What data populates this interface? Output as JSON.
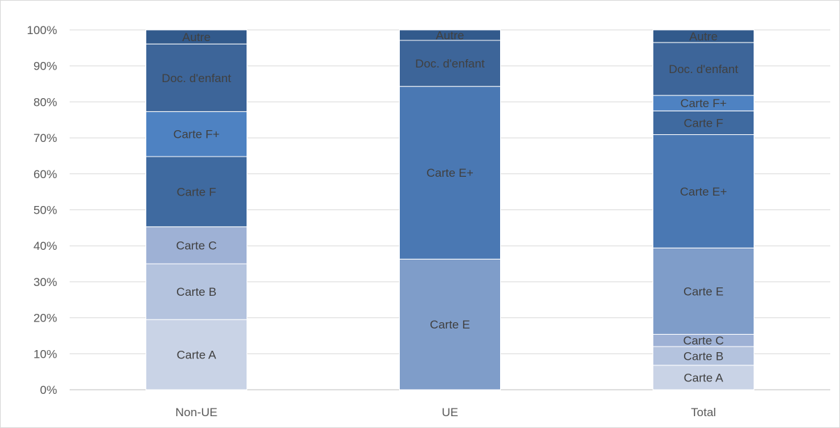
{
  "chart_data": {
    "type": "bar",
    "stacked": true,
    "percent": true,
    "categories": [
      "Non-UE",
      "UE",
      "Total"
    ],
    "ylim": [
      0,
      100
    ],
    "yticks": [
      "0%",
      "10%",
      "20%",
      "30%",
      "40%",
      "50%",
      "60%",
      "70%",
      "80%",
      "90%",
      "100%"
    ],
    "grid": true,
    "legend": "none",
    "series": [
      {
        "name": "Carte A",
        "color": "#c9d3e6",
        "values": [
          19.5,
          0,
          6.8
        ]
      },
      {
        "name": "Carte B",
        "color": "#b4c3de",
        "values": [
          15.5,
          0,
          5.2
        ]
      },
      {
        "name": "Carte C",
        "color": "#9eb1d5",
        "values": [
          10.3,
          0,
          3.4
        ]
      },
      {
        "name": "Carte E",
        "color": "#7f9dc9",
        "values": [
          0,
          36.3,
          24.0
        ]
      },
      {
        "name": "Carte E+",
        "color": "#4a78b3",
        "values": [
          0,
          48.0,
          31.5
        ]
      },
      {
        "name": "Carte F",
        "color": "#3f6aa0",
        "values": [
          19.5,
          0,
          6.6
        ]
      },
      {
        "name": "Carte F+",
        "color": "#4e82c2",
        "values": [
          12.5,
          0,
          4.3
        ]
      },
      {
        "name": "Doc. d'enfant",
        "color": "#3d6599",
        "values": [
          18.8,
          12.8,
          14.7
        ]
      },
      {
        "name": "Autre",
        "color": "#325a8c",
        "values": [
          3.9,
          2.9,
          3.5
        ]
      }
    ]
  }
}
